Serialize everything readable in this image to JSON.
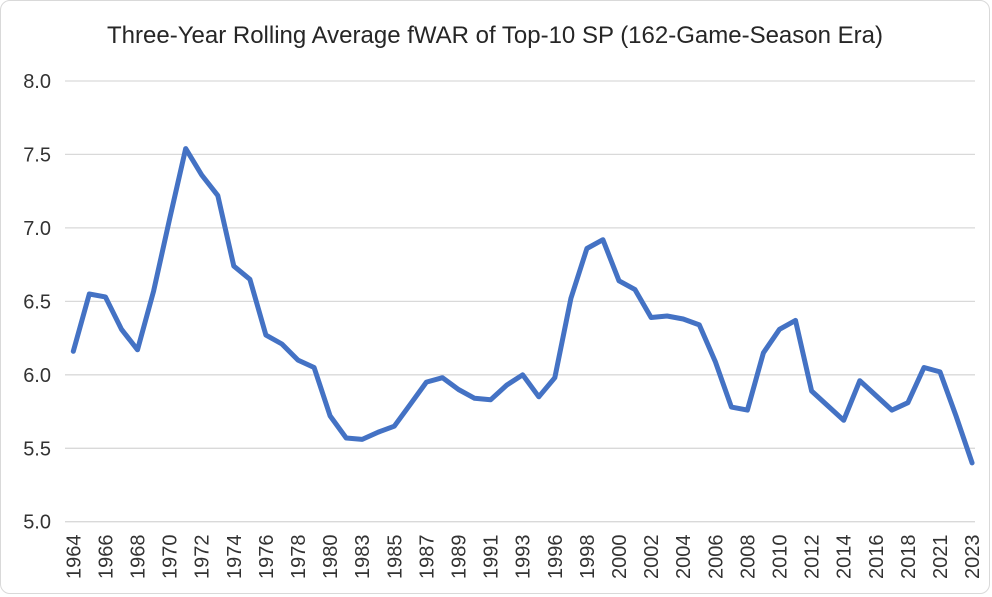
{
  "chart_data": {
    "type": "line",
    "title": "Three-Year Rolling Average fWAR of Top-10 SP (162-Game-Season Era)",
    "x": [
      "1964",
      "1965",
      "1966",
      "1967",
      "1968",
      "1969",
      "1970",
      "1971",
      "1972",
      "1973",
      "1974",
      "1975",
      "1976",
      "1977",
      "1978",
      "1979",
      "1980",
      "1982",
      "1983",
      "1984",
      "1985",
      "1986",
      "1987",
      "1988",
      "1989",
      "1990",
      "1991",
      "1992",
      "1993",
      "1995",
      "1996",
      "1997",
      "1998",
      "1999",
      "2000",
      "2001",
      "2002",
      "2003",
      "2004",
      "2005",
      "2006",
      "2007",
      "2008",
      "2009",
      "2010",
      "2011",
      "2012",
      "2013",
      "2014",
      "2015",
      "2016",
      "2017",
      "2018",
      "2019",
      "2021",
      "2022",
      "2023"
    ],
    "values": [
      6.16,
      6.55,
      6.53,
      6.31,
      6.17,
      6.57,
      7.06,
      7.54,
      7.36,
      7.22,
      6.74,
      6.65,
      6.27,
      6.21,
      6.1,
      6.05,
      5.72,
      5.57,
      5.56,
      5.61,
      5.65,
      5.8,
      5.95,
      5.98,
      5.9,
      5.84,
      5.83,
      5.93,
      6.0,
      5.85,
      5.98,
      6.52,
      6.86,
      6.92,
      6.64,
      6.58,
      6.39,
      6.4,
      6.38,
      6.34,
      6.09,
      5.78,
      5.76,
      6.15,
      6.31,
      6.37,
      5.89,
      5.79,
      5.69,
      5.96,
      5.86,
      5.76,
      5.81,
      6.05,
      6.02,
      5.72,
      5.4
    ],
    "x_tick_labels": [
      "1964",
      "1966",
      "1968",
      "1970",
      "1972",
      "1974",
      "1976",
      "1978",
      "1980",
      "1983",
      "1985",
      "1987",
      "1989",
      "1991",
      "1993",
      "1996",
      "1998",
      "2000",
      "2002",
      "2004",
      "2006",
      "2008",
      "2010",
      "2012",
      "2014",
      "2016",
      "2018",
      "2021",
      "2023"
    ],
    "y_tick_labels": [
      "8.0",
      "7.5",
      "7.0",
      "6.5",
      "6.0",
      "5.5",
      "5.0"
    ],
    "ylim": [
      5.0,
      8.0
    ],
    "xlabel": "",
    "ylabel": "",
    "legend_position": "none",
    "grid": "horizontal",
    "colors": {
      "line": "#4472C4",
      "gridline": "#D9D9D9",
      "tick_label": "#333333",
      "title": "#262626",
      "background": "#FFFFFF",
      "border": "#D9D9D9"
    }
  }
}
